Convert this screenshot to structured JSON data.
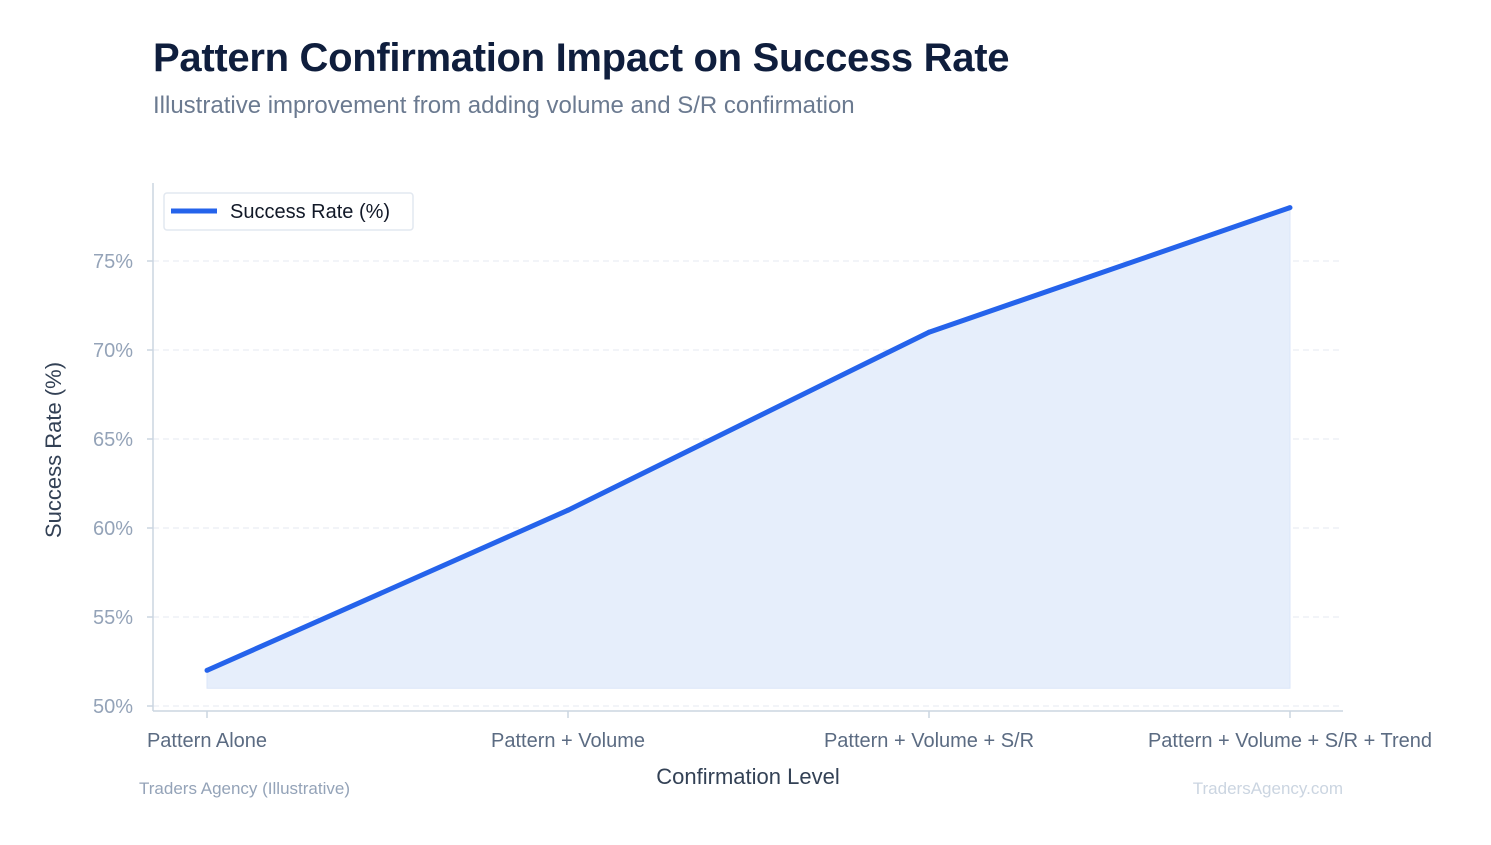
{
  "header": {
    "title": "Pattern Confirmation Impact on Success Rate",
    "subtitle": "Illustrative improvement from adding volume and S/R confirmation"
  },
  "footer": {
    "source": "Traders Agency (Illustrative)",
    "watermark": "TradersAgency.com"
  },
  "chart_data": {
    "type": "area",
    "categories": [
      "Pattern Alone",
      "Pattern + Volume",
      "Pattern + Volume + S/R",
      "Pattern + Volume + S/R + Trend"
    ],
    "series": [
      {
        "name": "Success Rate (%)",
        "values": [
          52,
          61,
          71,
          78
        ],
        "color": "#2563eb",
        "fill": "#e6eefb"
      }
    ],
    "xlabel": "Confirmation Level",
    "ylabel": "Success Rate (%)",
    "ylim": [
      50,
      78
    ],
    "yticks": [
      50,
      55,
      60,
      65,
      70,
      75
    ],
    "ytick_labels": [
      "50%",
      "55%",
      "60%",
      "65%",
      "70%",
      "75%"
    ],
    "area_baseline": 51,
    "grid": "horizontal dashed",
    "legend_position": "top-left"
  }
}
